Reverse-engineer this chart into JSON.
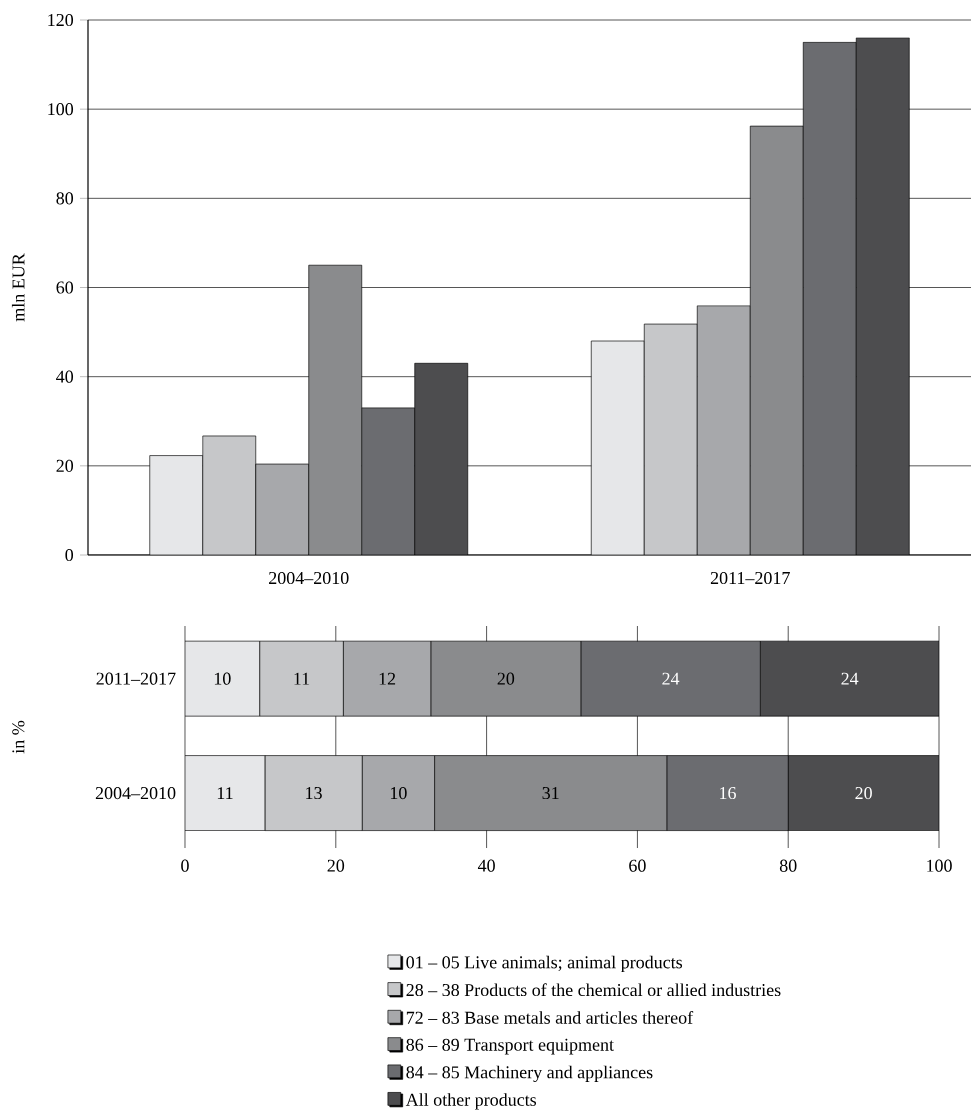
{
  "chart_data": [
    {
      "type": "bar",
      "ylabel": "mln EUR",
      "categories": [
        "2004–2010",
        "2011–2017"
      ],
      "ylim": [
        0,
        120
      ],
      "yticks": [
        0,
        20,
        40,
        60,
        80,
        100,
        120
      ],
      "grid": "y",
      "series": [
        {
          "color": "#e6e7e9",
          "values": [
            22.3,
            48
          ]
        },
        {
          "color": "#c6c7c9",
          "values": [
            26.7,
            51.8
          ]
        },
        {
          "color": "#a7a8ab",
          "values": [
            20.4,
            55.9
          ]
        },
        {
          "color": "#8a8b8d",
          "values": [
            65,
            96.2
          ]
        },
        {
          "color": "#6b6c70",
          "values": [
            33,
            115
          ]
        },
        {
          "color": "#4d4d4f",
          "values": [
            43,
            116
          ]
        }
      ]
    },
    {
      "type": "bar",
      "orientation": "horizontal",
      "stacked": true,
      "ylabel": "in %",
      "categories": [
        "2011–2017",
        "2004–2010"
      ],
      "xlim": [
        0,
        100
      ],
      "xticks": [
        0,
        20,
        40,
        60,
        80,
        100
      ],
      "grid": "x",
      "legend": "bottom",
      "series": [
        {
          "name": "01 – 05 Live animals; animal products",
          "color": "#e6e7e9",
          "values": [
            9.9,
            10.6
          ],
          "value_labels": [
            "10",
            "11"
          ]
        },
        {
          "name": "28 – 38 Products of the chemical or allied industries",
          "color": "#c6c7c9",
          "values": [
            11.1,
            12.9
          ],
          "value_labels": [
            "11",
            "13"
          ]
        },
        {
          "name": "72 – 83 Base metals and articles thereof",
          "color": "#a7a8ab",
          "values": [
            11.6,
            9.6
          ],
          "value_labels": [
            "12",
            "10"
          ]
        },
        {
          "name": "86 – 89 Transport equipment",
          "color": "#8a8b8d",
          "values": [
            19.9,
            30.8
          ],
          "value_labels": [
            "20",
            "31"
          ]
        },
        {
          "name": "84 – 85 Machinery and appliances",
          "color": "#6b6c70",
          "values": [
            23.8,
            16.1
          ],
          "value_labels": [
            "24",
            "16"
          ]
        },
        {
          "name": "All other products",
          "color": "#4d4d4f",
          "values": [
            23.7,
            20.0
          ],
          "value_labels": [
            "24",
            "20"
          ]
        }
      ]
    }
  ]
}
